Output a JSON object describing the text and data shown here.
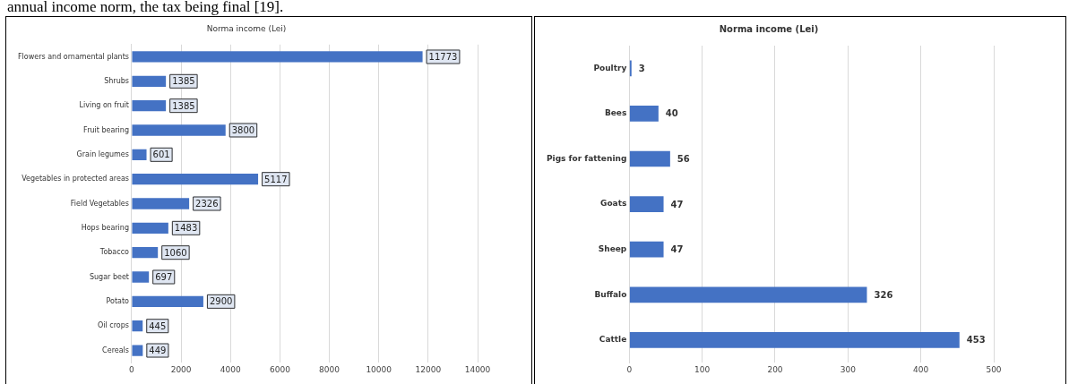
{
  "chart_data": [
    {
      "type": "bar",
      "orientation": "horizontal",
      "title": "Norma income (Lei)",
      "annotations": [
        "annual income norm, the tax being final [19]."
      ],
      "categories": [
        "Flowers and ornamental plants",
        "Shrubs",
        "Living on fruit",
        "Fruit bearing",
        "Grain legumes",
        "Vegetables in protected areas",
        "Field Vegetables",
        "Hops bearing",
        "Tobacco",
        "Sugar beet",
        "Potato",
        "Oil crops",
        "Cereals"
      ],
      "values": [
        11773,
        1385,
        1385,
        3800,
        601,
        5117,
        2326,
        1483,
        1060,
        697,
        2900,
        445,
        449
      ],
      "color": "#4472c4",
      "xlim": [
        0,
        14000
      ],
      "xticks": [
        0,
        2000,
        4000,
        6000,
        8000,
        10000,
        12000,
        14000
      ],
      "grid": "x",
      "data_labels": true
    },
    {
      "type": "bar",
      "orientation": "horizontal",
      "title": "Norma income (Lei)",
      "categories": [
        "Poultry",
        "Bees",
        "Pigs for fattening",
        "Goats",
        "Sheep",
        "Buffalo",
        "Cattle"
      ],
      "values": [
        3,
        40,
        56,
        47,
        47,
        326,
        453
      ],
      "color": "#4472c4",
      "xlim": [
        0,
        500
      ],
      "xticks": [
        0,
        100,
        200,
        300,
        400,
        500
      ],
      "grid": "x",
      "data_labels": true
    }
  ]
}
